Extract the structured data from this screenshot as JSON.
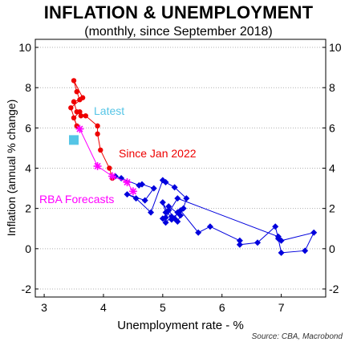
{
  "chart_data": {
    "type": "scatter",
    "title": "INFLATION & UNEMPLOYMENT",
    "subtitle": "(monthly, since September 2018)",
    "xlabel": "Unemployment rate - %",
    "ylabel": "Inflation (annual % change)",
    "xlim": [
      2.85,
      7.75
    ],
    "ylim": [
      -2.4,
      10.4
    ],
    "xticks": [
      "3",
      "4",
      "5",
      "6",
      "7"
    ],
    "yticks": [
      "-2",
      "0",
      "2",
      "4",
      "6",
      "8",
      "10"
    ],
    "grid": "horizontal dotted",
    "source": "Source: CBA, Macrobond",
    "annotations": {
      "latest": "Latest",
      "since_jan_2022": "Since Jan 2022",
      "rba_forecasts": "RBA Forecasts"
    },
    "colors": {
      "pre_2022": "#0000dd",
      "since_jan_2022": "#ee0000",
      "rba_forecasts": "#ff00ff",
      "latest": "#55c5e6"
    },
    "series": [
      {
        "key": "pre_2022",
        "marker": "diamond",
        "points": [
          [
            4.2,
            3.6
          ],
          [
            4.3,
            3.5
          ],
          [
            4.6,
            3.15
          ],
          [
            4.65,
            3.2
          ],
          [
            4.85,
            3.0
          ],
          [
            4.7,
            2.4
          ],
          [
            4.4,
            2.7
          ],
          [
            4.55,
            2.5
          ],
          [
            4.8,
            1.8
          ],
          [
            5.0,
            3.4
          ],
          [
            5.05,
            3.3
          ],
          [
            5.2,
            3.05
          ],
          [
            5.4,
            2.5
          ],
          [
            5.35,
            2.0
          ],
          [
            5.25,
            1.8
          ],
          [
            5.2,
            1.5
          ],
          [
            5.1,
            1.9
          ],
          [
            5.0,
            1.5
          ],
          [
            5.05,
            1.3
          ],
          [
            5.15,
            1.6
          ],
          [
            5.25,
            1.35
          ],
          [
            5.3,
            1.65
          ],
          [
            5.1,
            2.1
          ],
          [
            5.05,
            1.8
          ],
          [
            5.0,
            2.3
          ],
          [
            5.15,
            1.45
          ],
          [
            5.3,
            1.9
          ],
          [
            5.6,
            0.8
          ],
          [
            5.8,
            1.1
          ],
          [
            6.3,
            0.4
          ],
          [
            6.3,
            0.2
          ],
          [
            6.6,
            0.3
          ],
          [
            6.9,
            1.1
          ],
          [
            6.95,
            0.5
          ],
          [
            7.0,
            -0.2
          ],
          [
            7.4,
            -0.1
          ],
          [
            7.55,
            0.8
          ],
          [
            7.0,
            0.4
          ],
          [
            6.95,
            0.6
          ],
          [
            5.25,
            2.5
          ],
          [
            5.05,
            1.55
          ]
        ]
      },
      {
        "key": "since_jan_2022",
        "marker": "circle",
        "points": [
          [
            4.15,
            3.5
          ],
          [
            4.1,
            4.0
          ],
          [
            3.95,
            4.9
          ],
          [
            3.9,
            5.7
          ],
          [
            3.9,
            6.1
          ],
          [
            3.7,
            6.6
          ],
          [
            3.55,
            6.8
          ],
          [
            3.5,
            7.3
          ],
          [
            3.6,
            7.4
          ],
          [
            3.55,
            7.8
          ],
          [
            3.5,
            8.35
          ],
          [
            3.65,
            7.5
          ],
          [
            3.45,
            7.0
          ],
          [
            3.55,
            6.1
          ],
          [
            3.5,
            6.5
          ],
          [
            3.6,
            6.8
          ],
          [
            3.62,
            6.6
          ]
        ]
      },
      {
        "key": "rba_forecasts",
        "marker": "asterisk",
        "points": [
          [
            3.6,
            5.95
          ],
          [
            3.9,
            4.1
          ],
          [
            4.15,
            3.6
          ],
          [
            4.4,
            3.3
          ],
          [
            4.5,
            2.85
          ]
        ]
      },
      {
        "key": "latest",
        "marker": "square",
        "points": [
          [
            3.5,
            5.4
          ]
        ]
      }
    ]
  }
}
